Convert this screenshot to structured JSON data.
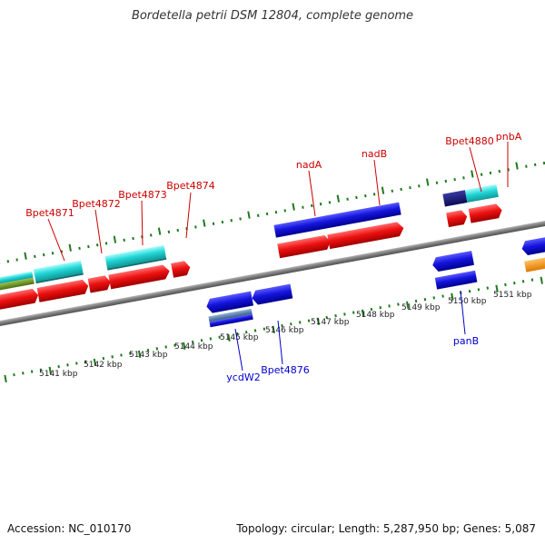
{
  "title": "Bordetella petrii DSM 12804, complete genome",
  "footer": {
    "accession": "Accession: NC_010170",
    "summary": "Topology: circular; Length: 5,287,950 bp; Genes: 5,087"
  },
  "colors": {
    "backbone": "#7f7f7f",
    "tick": "#1e7a1e",
    "forward_label": "#cc0000",
    "reverse_label": "#0000cc",
    "scale_label": "#222222"
  },
  "scale_labels": [
    "5141 kbp",
    "5142 kbp",
    "5143 kbp",
    "5144 kbp",
    "5145 kbp",
    "5146 kbp",
    "5147 kbp",
    "5148 kbp",
    "5149 kbp",
    "5150 kbp",
    "5151 kbp"
  ],
  "gene_labels_top": [
    "Bpet4871",
    "Bpet4872",
    "Bpet4873",
    "Bpet4874",
    "nadA",
    "nadB",
    "Bpet4880",
    "pnbA"
  ],
  "gene_labels_bottom": [
    "ycdW2",
    "Bpet4876",
    "panB"
  ]
}
